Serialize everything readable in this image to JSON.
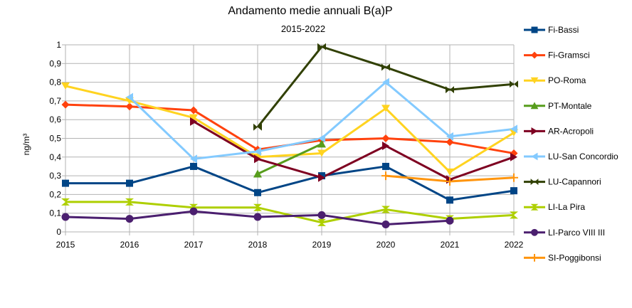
{
  "chart_data": {
    "type": "line",
    "title": "Andamento medie annuali B(a)P",
    "subtitle": "2015-2022",
    "xlabel": "",
    "ylabel": "ng/m³",
    "ylim": [
      0,
      1
    ],
    "grid": true,
    "legend": "right",
    "x": [
      "2015",
      "2016",
      "2017",
      "2018",
      "2019",
      "2020",
      "2021",
      "2022"
    ],
    "y_ticks": [
      "0",
      "0,1",
      "0,2",
      "0,3",
      "0,4",
      "0,5",
      "0,6",
      "0,7",
      "0,8",
      "0,9",
      "1"
    ],
    "series": [
      {
        "name": "Fi-Bassi",
        "color": "#004586",
        "marker": "square",
        "values": [
          0.26,
          0.26,
          0.35,
          0.21,
          0.3,
          0.35,
          0.17,
          0.22
        ]
      },
      {
        "name": "Fi-Gramsci",
        "color": "#ff420e",
        "marker": "diamond",
        "values": [
          0.68,
          0.67,
          0.65,
          0.44,
          0.49,
          0.5,
          0.48,
          0.42
        ]
      },
      {
        "name": "PO-Roma",
        "color": "#ffd320",
        "marker": "arrow-down",
        "values": [
          0.78,
          0.7,
          0.61,
          0.4,
          0.42,
          0.66,
          0.32,
          0.53
        ]
      },
      {
        "name": "PT-Montale",
        "color": "#579d1c",
        "marker": "triangle-up",
        "values": [
          null,
          null,
          null,
          0.31,
          0.47,
          null,
          null,
          null
        ]
      },
      {
        "name": "AR-Acropoli",
        "color": "#7e0021",
        "marker": "arrow-right",
        "values": [
          null,
          null,
          0.59,
          0.39,
          0.29,
          0.46,
          0.28,
          0.4
        ]
      },
      {
        "name": "LU-San Concordio",
        "color": "#83caff",
        "marker": "arrow-left",
        "values": [
          null,
          0.72,
          0.39,
          0.43,
          0.5,
          0.8,
          0.51,
          0.55
        ]
      },
      {
        "name": "LU-Capannori",
        "color": "#314004",
        "marker": "bowtie",
        "values": [
          null,
          null,
          null,
          0.56,
          0.99,
          0.88,
          0.76,
          0.79
        ]
      },
      {
        "name": "LI-La Pira",
        "color": "#aecf00",
        "marker": "hourglass",
        "values": [
          0.16,
          0.16,
          0.13,
          0.13,
          0.05,
          0.12,
          0.07,
          0.09
        ]
      },
      {
        "name": "LI-Parco VIII III",
        "color": "#4b1f6f",
        "marker": "circle",
        "values": [
          0.08,
          0.07,
          0.11,
          0.08,
          0.09,
          0.04,
          0.06,
          null
        ]
      },
      {
        "name": "SI-Poggibonsi",
        "color": "#ff950e",
        "marker": "star",
        "values": [
          null,
          null,
          null,
          null,
          null,
          0.3,
          0.27,
          0.29
        ]
      }
    ]
  }
}
